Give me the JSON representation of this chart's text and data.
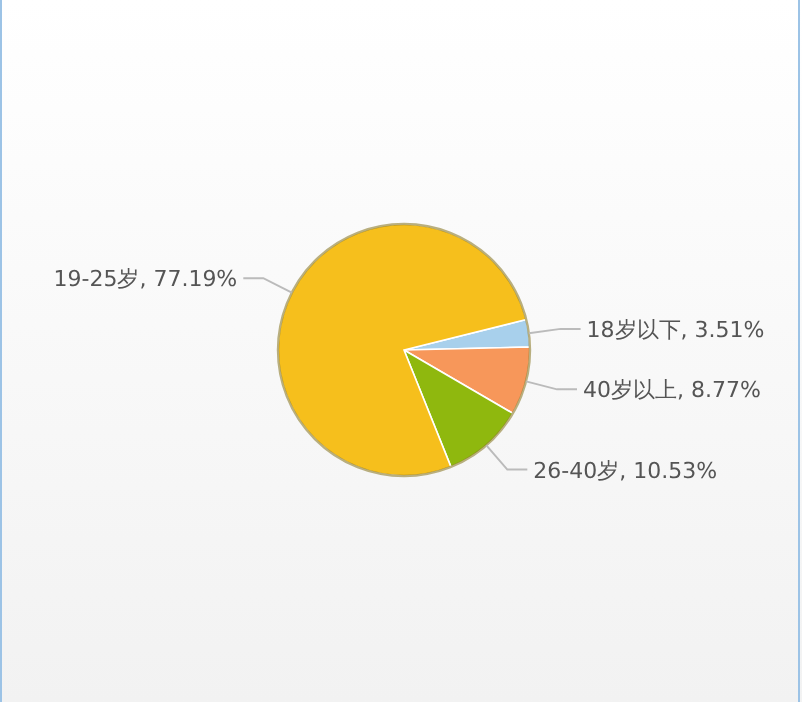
{
  "chart_data": {
    "type": "pie",
    "categories": [
      "18岁以下",
      "40岁以上",
      "26-40岁",
      "19-25岁"
    ],
    "values": [
      3.51,
      8.77,
      10.53,
      77.19
    ],
    "value_labels": [
      ", 3.51%",
      ", 8.77%",
      ", 10.53%",
      ", 77.19%"
    ],
    "colors": [
      "#a8d0ec",
      "#f7975a",
      "#8fb80e",
      "#f6bf1c"
    ]
  }
}
